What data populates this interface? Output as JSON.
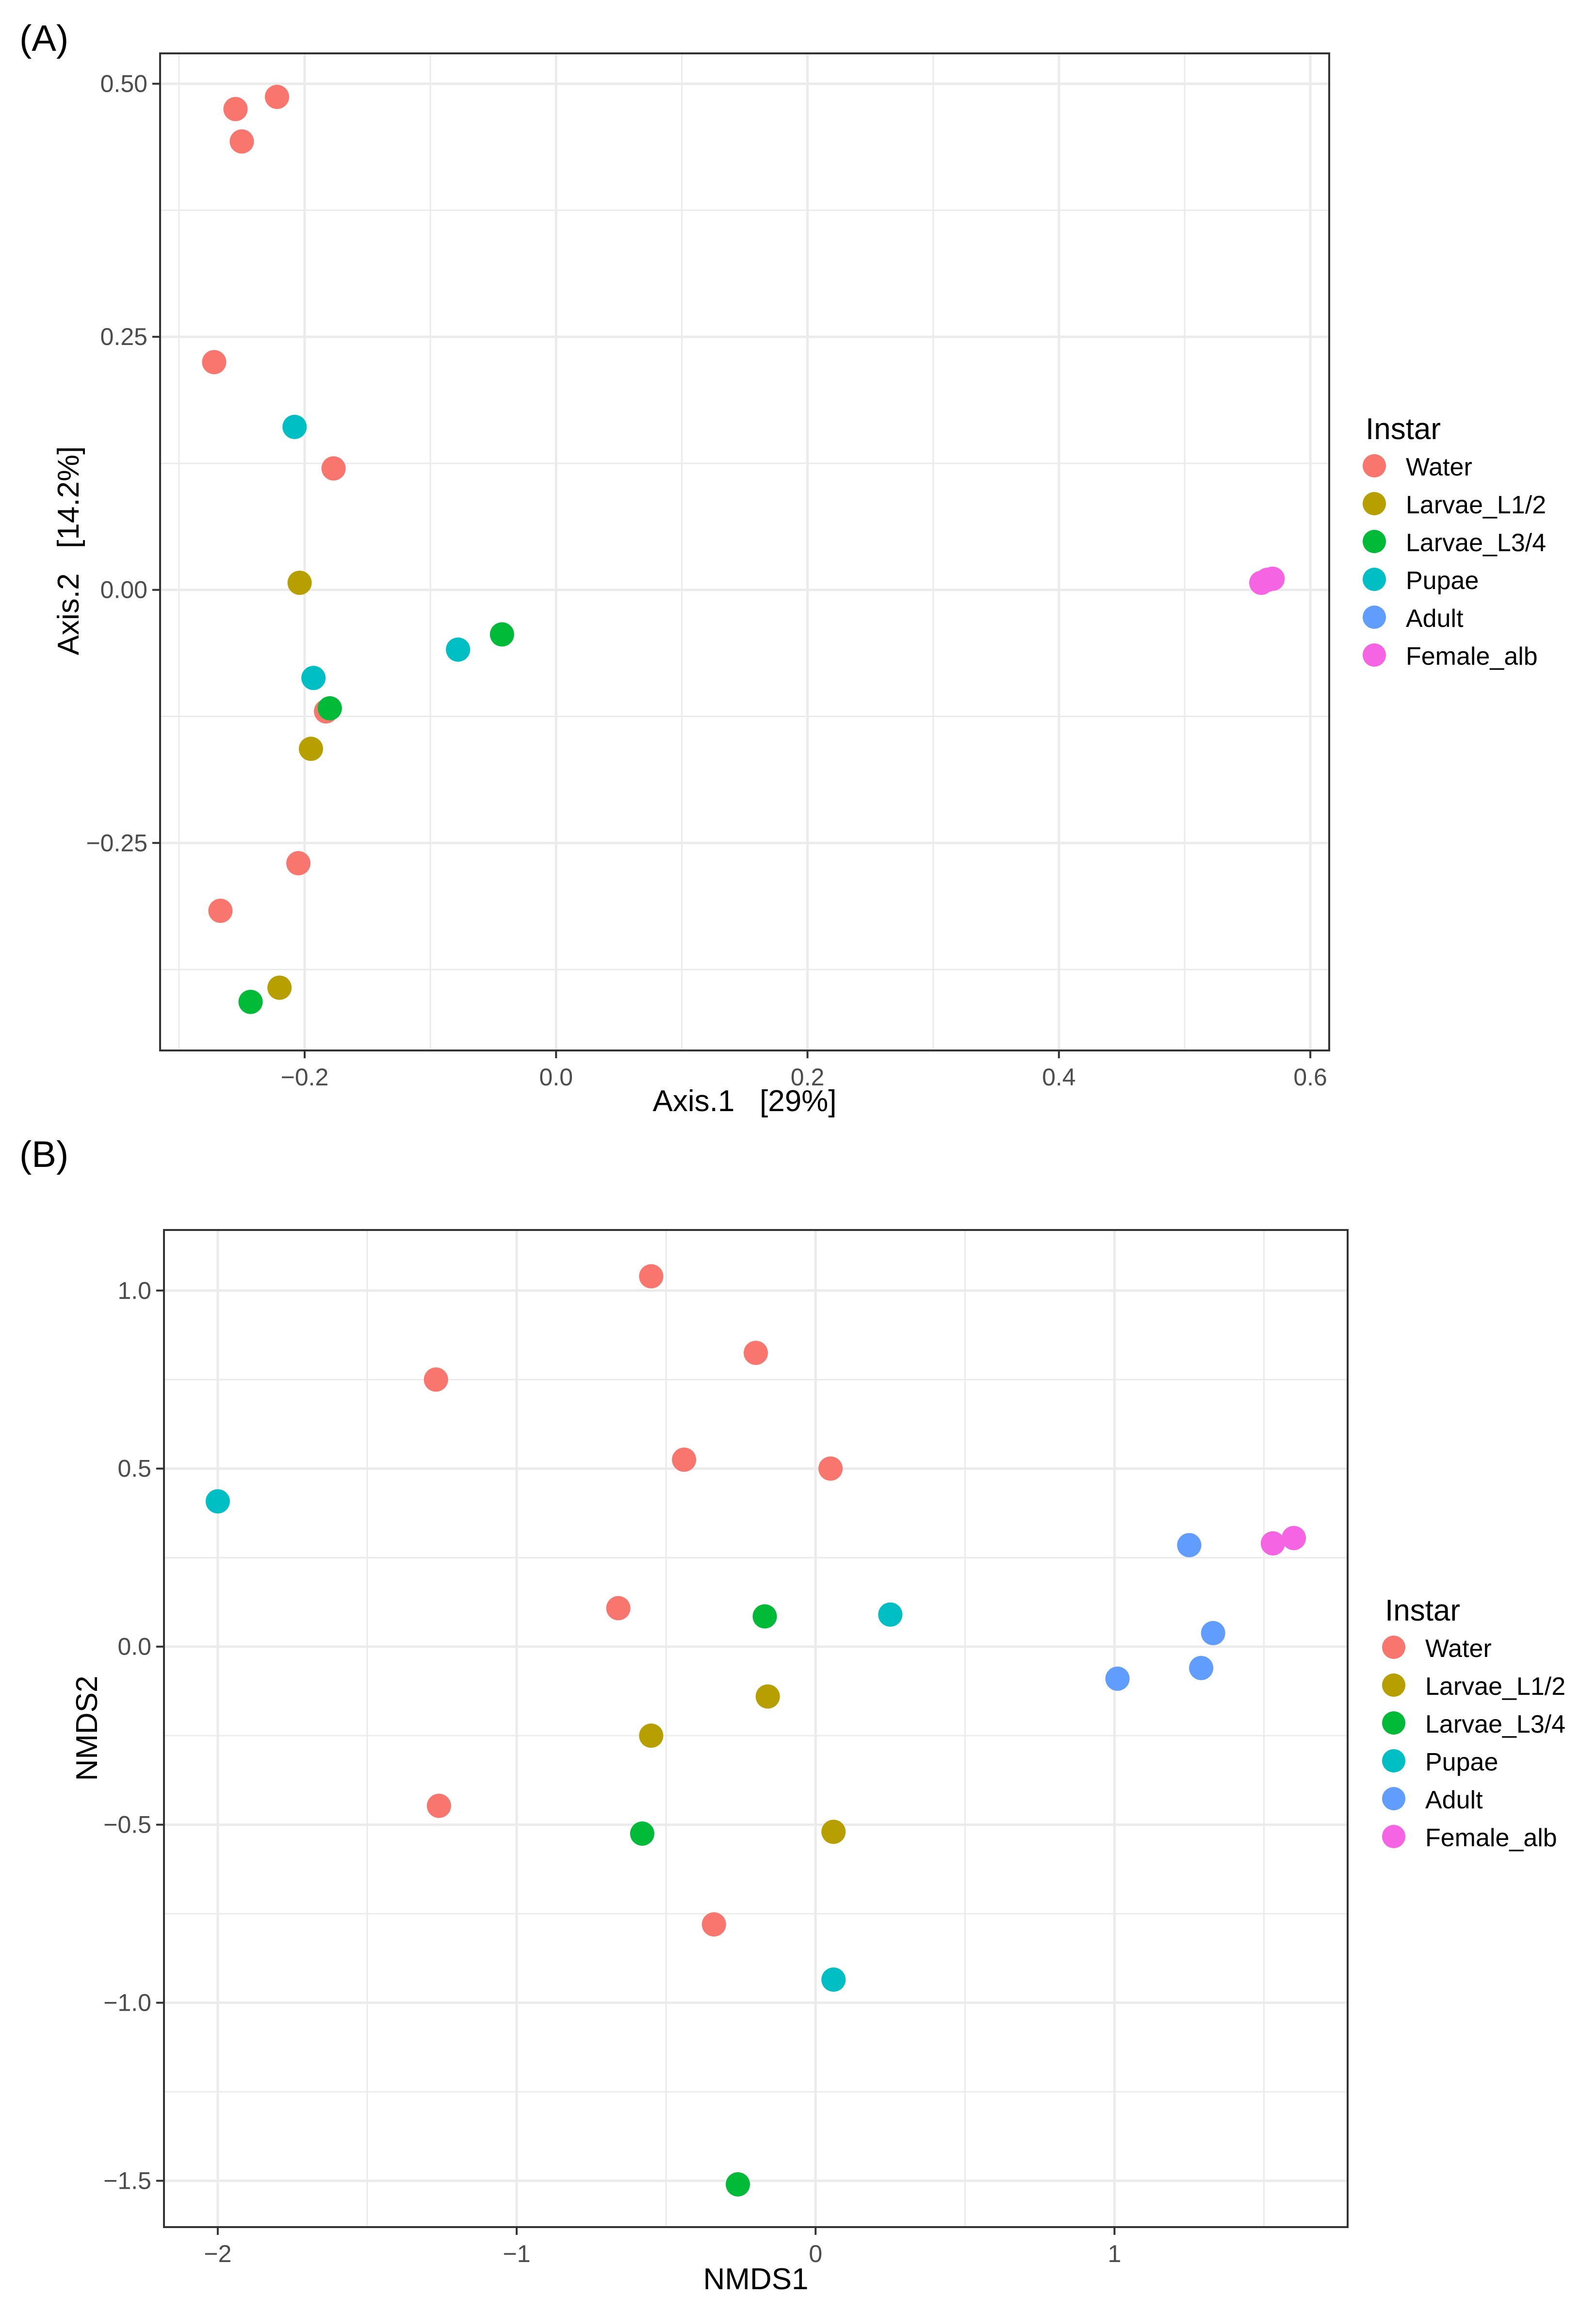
{
  "panel_labels": [
    "(A)",
    "(B)"
  ],
  "legend_levels": [
    "Water",
    "Larvae_L1/2",
    "Larvae_L3/4",
    "Pupae",
    "Adult",
    "Female_alb"
  ],
  "colors": {
    "Water": "#F8766D",
    "Larvae_L1/2": "#B79F00",
    "Larvae_L3/4": "#00BA38",
    "Pupae": "#00BFC4",
    "Adult": "#619CFF",
    "Female_alb": "#F564E3",
    "grid": "#ebebeb",
    "axis": "#333333"
  },
  "chart_data": [
    {
      "type": "scatter",
      "panel": "(A)",
      "xlabel": "Axis.1   [29%]",
      "ylabel": "Axis.2   [14.2%]",
      "xlim": [
        -0.315,
        0.615
      ],
      "ylim": [
        -0.455,
        0.53
      ],
      "xticks": [
        -0.2,
        0.0,
        0.2,
        0.4,
        0.6
      ],
      "xtick_labels": [
        "−0.2",
        "0.0",
        "0.2",
        "0.4",
        "0.6"
      ],
      "yticks": [
        0.5,
        0.25,
        0.0,
        -0.25
      ],
      "ytick_labels": [
        "0.50",
        "0.25",
        "0.00",
        "−0.25"
      ],
      "legend_title": "Instar",
      "legend_position": "right",
      "grid": true,
      "series": [
        {
          "name": "Water",
          "points": [
            [
              -0.255,
              0.475
            ],
            [
              -0.222,
              0.487
            ],
            [
              -0.25,
              0.443
            ],
            [
              -0.272,
              0.225
            ],
            [
              -0.177,
              0.12
            ],
            [
              -0.183,
              -0.12
            ],
            [
              -0.205,
              -0.27
            ],
            [
              -0.267,
              -0.317
            ]
          ]
        },
        {
          "name": "Larvae_L1/2",
          "points": [
            [
              -0.204,
              0.007
            ],
            [
              -0.195,
              -0.157
            ],
            [
              -0.22,
              -0.393
            ]
          ]
        },
        {
          "name": "Larvae_L3/4",
          "points": [
            [
              -0.043,
              -0.044
            ],
            [
              -0.18,
              -0.117
            ],
            [
              -0.243,
              -0.407
            ]
          ]
        },
        {
          "name": "Pupae",
          "points": [
            [
              -0.208,
              0.161
            ],
            [
              -0.078,
              -0.059
            ],
            [
              -0.193,
              -0.087
            ]
          ]
        },
        {
          "name": "Adult",
          "points": []
        },
        {
          "name": "Female_alb",
          "points": [
            [
              0.561,
              0.007
            ],
            [
              0.566,
              0.01
            ],
            [
              0.57,
              0.011
            ]
          ]
        }
      ]
    },
    {
      "type": "scatter",
      "panel": "(B)",
      "xlabel": "NMDS1",
      "ylabel": "NMDS2",
      "xlim": [
        -2.18,
        1.78
      ],
      "ylim": [
        -1.63,
        1.17
      ],
      "xticks": [
        -2,
        -1,
        0,
        1
      ],
      "xtick_labels": [
        "−2",
        "−1",
        "0",
        "1"
      ],
      "yticks": [
        1.0,
        0.5,
        0.0,
        -0.5,
        -1.0,
        -1.5
      ],
      "ytick_labels": [
        "1.0",
        "0.5",
        "0.0",
        "−0.5",
        "−1.0",
        "−1.5"
      ],
      "legend_title": "Instar",
      "legend_position": "right",
      "grid": true,
      "series": [
        {
          "name": "Water",
          "points": [
            [
              -0.55,
              1.04
            ],
            [
              -0.2,
              0.825
            ],
            [
              -1.27,
              0.75
            ],
            [
              -0.44,
              0.525
            ],
            [
              0.05,
              0.5
            ],
            [
              -0.66,
              0.108
            ],
            [
              -1.26,
              -0.447
            ],
            [
              -0.34,
              -0.78
            ]
          ]
        },
        {
          "name": "Larvae_L1/2",
          "points": [
            [
              -0.16,
              -0.14
            ],
            [
              -0.55,
              -0.25
            ],
            [
              0.06,
              -0.52
            ]
          ]
        },
        {
          "name": "Larvae_L3/4",
          "points": [
            [
              -0.17,
              0.085
            ],
            [
              -0.58,
              -0.525
            ],
            [
              -0.26,
              -1.51
            ]
          ]
        },
        {
          "name": "Pupae",
          "points": [
            [
              -2.0,
              0.408
            ],
            [
              0.25,
              0.09
            ],
            [
              0.06,
              -0.935
            ]
          ]
        },
        {
          "name": "Adult",
          "points": [
            [
              1.25,
              0.285
            ],
            [
              1.33,
              0.038
            ],
            [
              1.29,
              -0.06
            ],
            [
              1.01,
              -0.09
            ]
          ]
        },
        {
          "name": "Female_alb",
          "points": [
            [
              1.53,
              0.29
            ],
            [
              1.6,
              0.305
            ]
          ]
        }
      ]
    }
  ]
}
